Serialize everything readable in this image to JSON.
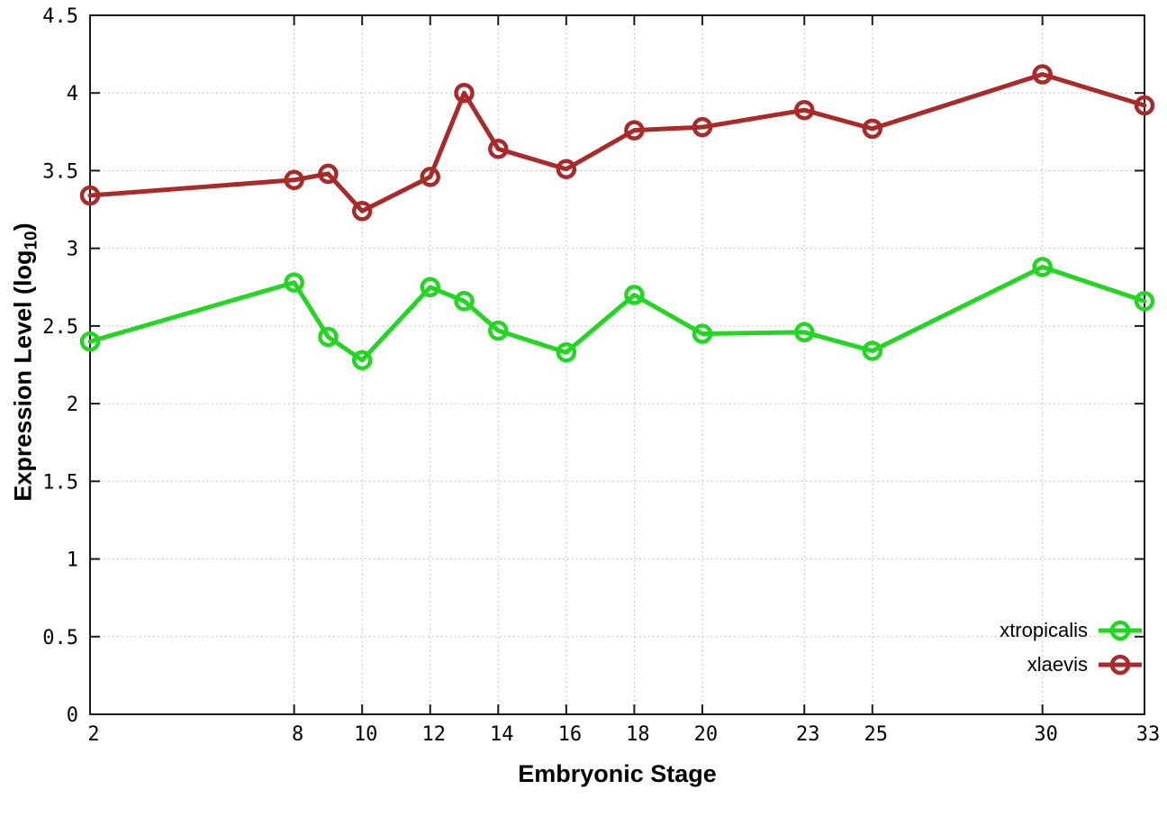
{
  "chart_data": {
    "type": "line",
    "title": "",
    "xlabel": "Embryonic Stage",
    "ylabel": "Expression Level (log10)",
    "ylabel_prefix": "Expression Level (log",
    "ylabel_subscript": "10",
    "ylabel_suffix": ")",
    "x": [
      2,
      8,
      9,
      10,
      12,
      13,
      14,
      16,
      18,
      20,
      23,
      25,
      30,
      33
    ],
    "series": [
      {
        "name": "xtropicalis",
        "color": "#22D622",
        "values": [
          2.4,
          2.78,
          2.43,
          2.28,
          2.75,
          2.66,
          2.47,
          2.33,
          2.7,
          2.45,
          2.46,
          2.34,
          2.88,
          2.66
        ]
      },
      {
        "name": "xlaevis",
        "color": "#AA2A2A",
        "values": [
          3.34,
          3.44,
          3.48,
          3.24,
          3.46,
          4.0,
          3.64,
          3.51,
          3.76,
          3.78,
          3.89,
          3.77,
          4.12,
          3.92
        ]
      }
    ],
    "xlim": [
      2,
      33
    ],
    "ylim": [
      0,
      4.5
    ],
    "x_ticks": [
      2,
      8,
      10,
      12,
      14,
      16,
      18,
      20,
      23,
      25,
      30,
      33
    ],
    "y_ticks": [
      0,
      0.5,
      1,
      1.5,
      2,
      2.5,
      3,
      3.5,
      4,
      4.5
    ],
    "y_tick_labels": [
      "0",
      "0.5",
      "1",
      "1.5",
      "2",
      "2.5",
      "3",
      "3.5",
      "4",
      "4.5"
    ],
    "grid": "dotted",
    "legend_position": "bottom-right",
    "marker": "open-circle",
    "background_color": "#ffffff",
    "axis_color": "#1a1a1a",
    "grid_color": "#b5b5b5"
  }
}
